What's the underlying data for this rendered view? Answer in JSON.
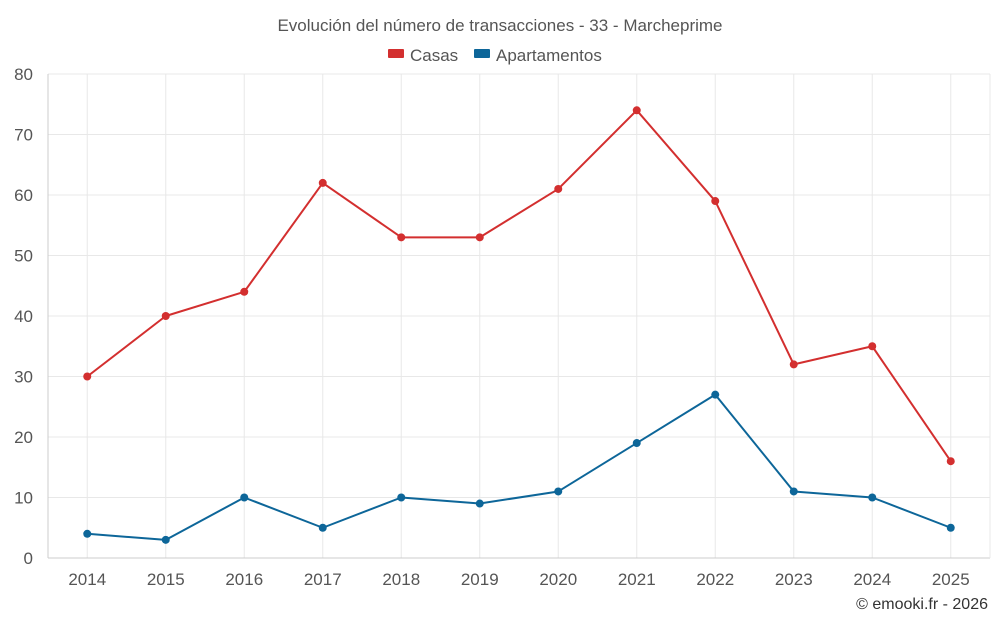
{
  "chart_data": {
    "type": "line",
    "title": "Evolución del número de transacciones - 33 - Marcheprime",
    "categories": [
      "2014",
      "2015",
      "2016",
      "2017",
      "2018",
      "2019",
      "2020",
      "2021",
      "2022",
      "2023",
      "2024",
      "2025"
    ],
    "series": [
      {
        "name": "Casas",
        "color": "#d32f2f",
        "values": [
          30,
          40,
          44,
          62,
          53,
          53,
          61,
          74,
          59,
          32,
          35,
          16
        ]
      },
      {
        "name": "Apartamentos",
        "color": "#0d6699",
        "values": [
          4,
          3,
          10,
          5,
          10,
          9,
          11,
          19,
          27,
          11,
          10,
          5
        ]
      }
    ],
    "ylim": [
      0,
      80
    ],
    "yticks": [
      0,
      10,
      20,
      30,
      40,
      50,
      60,
      70,
      80
    ],
    "grid": true,
    "legend": "top-center"
  },
  "credit": "© emooki.fr - 2026"
}
